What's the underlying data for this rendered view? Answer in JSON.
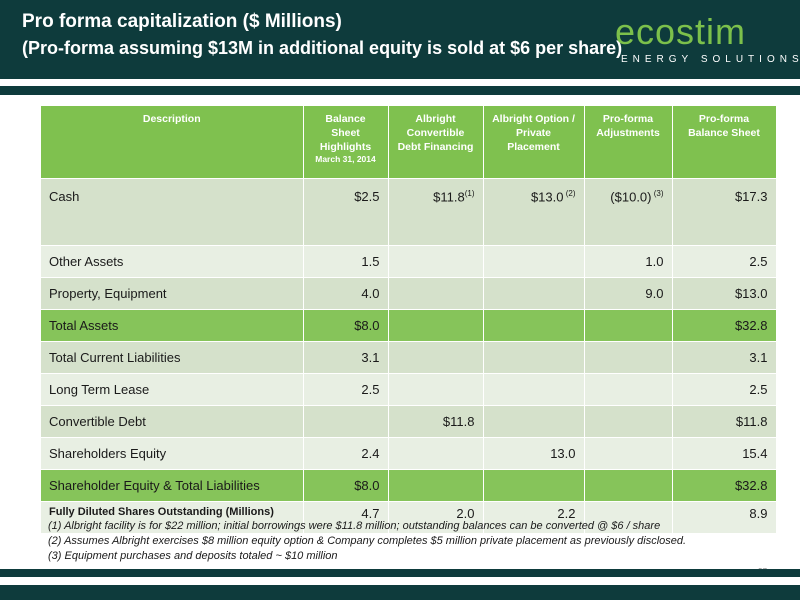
{
  "header": {
    "title": "Pro forma capitalization ($ Millions)",
    "subtitle": "(Pro-forma assuming $13M in additional equity is sold at $6 per share)"
  },
  "logo": {
    "word": "ecostim",
    "tagline": "ENERGY SOLUTIONS"
  },
  "table": {
    "columns": [
      {
        "label": "Description",
        "sub": ""
      },
      {
        "label": "Balance Sheet Highlights",
        "sub": "March 31, 2014"
      },
      {
        "label": "Albright Convertible Debt Financing",
        "sub": ""
      },
      {
        "label": "Albright Option / Private Placement",
        "sub": ""
      },
      {
        "label": "Pro-forma Adjustments",
        "sub": ""
      },
      {
        "label": "Pro-forma Balance Sheet",
        "sub": ""
      }
    ],
    "rows": [
      {
        "label": "Cash",
        "c1": "$2.5",
        "c2": "$11.8",
        "c2_sup": "(1)",
        "c3": "$13.0",
        "c3_sup": " (2)",
        "c4": "($10.0)",
        "c4_sup": " (3)",
        "c5": "$17.3"
      },
      {
        "label": "Other Assets",
        "c1": "1.5",
        "c2": "",
        "c3": "",
        "c4": "1.0",
        "c5": "2.5"
      },
      {
        "label": "Property, Equipment",
        "c1": "4.0",
        "c2": "",
        "c3": "",
        "c4": "9.0",
        "c5": "$13.0"
      },
      {
        "label": "Total Assets",
        "c1": "$8.0",
        "c2": "",
        "c3": "",
        "c4": "",
        "c5": "$32.8"
      },
      {
        "label": "Total Current Liabilities",
        "c1": "3.1",
        "c2": "",
        "c3": "",
        "c4": "",
        "c5": "3.1"
      },
      {
        "label": "Long Term Lease",
        "c1": "2.5",
        "c2": "",
        "c3": "",
        "c4": "",
        "c5": "2.5"
      },
      {
        "label": "Convertible Debt",
        "c1": "",
        "c2": "$11.8",
        "c3": "",
        "c4": "",
        "c5": "$11.8"
      },
      {
        "label": "Shareholders Equity",
        "c1": "2.4",
        "c2": "",
        "c3": "13.0",
        "c4": "",
        "c5": "15.4"
      },
      {
        "label": "Shareholder Equity & Total Liabilities",
        "c1": "$8.0",
        "c2": "",
        "c3": "",
        "c4": "",
        "c5": "$32.8"
      },
      {
        "label": "Fully Diluted Shares Outstanding (Millions)",
        "c1": "4.7",
        "c2": "2.0",
        "c3": "2.2",
        "c4": "",
        "c5": "8.9"
      }
    ]
  },
  "footnotes": [
    "(1) Albright facility is for $22 million; initial borrowings were $11.8 million; outstanding balances can be converted @ $6 / share",
    "(2) Assumes Albright exercises $8 million equity option & Company completes $5 million private placement as previously disclosed.",
    "(3) Equipment purchases and deposits totaled ~ $10 million"
  ],
  "page_number": "37",
  "colors": {
    "header_bg": "#0e3b3c",
    "accent_green": "#7fc14f",
    "row_light": "#e8efe3",
    "row_mid": "#d5e1cb"
  }
}
